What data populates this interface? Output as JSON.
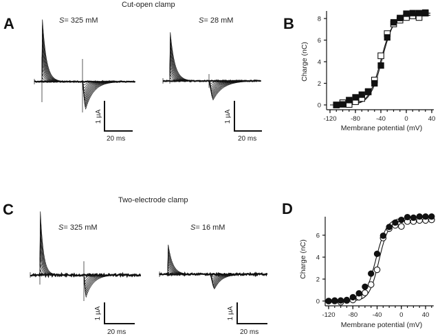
{
  "captions": {
    "top": "Cut-open clamp",
    "bottom": "Two-electrode clamp"
  },
  "panels": {
    "A": {
      "letter": "A"
    },
    "B": {
      "letter": "B"
    },
    "C": {
      "letter": "C"
    },
    "D": {
      "letter": "D"
    }
  },
  "traces": [
    {
      "id": "A1",
      "panel": "A",
      "s_symbol": "S",
      "label": "= 325 mM",
      "concentration_mM": 325,
      "scale_current": "1 µA",
      "scale_time": "20 ms"
    },
    {
      "id": "A2",
      "panel": "A",
      "s_symbol": "S",
      "label": "= 28 mM",
      "concentration_mM": 28,
      "scale_current": "1 µA",
      "scale_time": "20 ms"
    },
    {
      "id": "C1",
      "panel": "C",
      "s_symbol": "S",
      "label": "= 325 mM",
      "concentration_mM": 325,
      "scale_current": "1 µA",
      "scale_time": "20 ms"
    },
    {
      "id": "C2",
      "panel": "C",
      "s_symbol": "S",
      "label": "= 16 mM",
      "concentration_mM": 16,
      "scale_current": "1 µA",
      "scale_time": "20 ms"
    }
  ],
  "chart_data": [
    {
      "panel": "B",
      "type": "scatter",
      "title": "",
      "xlabel": "Membrane potential (mV)",
      "ylabel": "Charge (nC)",
      "xlim": [
        -125,
        40
      ],
      "ylim": [
        0,
        8.5
      ],
      "xticks": [
        -120,
        -80,
        -40,
        0,
        40
      ],
      "xticks_minor": [
        -120,
        -110,
        -100,
        -90,
        -80,
        -70,
        -60,
        -50,
        -40,
        -30,
        -20,
        -10,
        0,
        10,
        20,
        30,
        40
      ],
      "yticks": [
        0,
        2,
        4,
        6,
        8
      ],
      "xtick_labels": [
        "-120",
        "-80",
        "-40",
        "0",
        "40"
      ],
      "ytick_labels": [
        "0",
        "2",
        "4",
        "6",
        "8"
      ],
      "grid": false,
      "series": [
        {
          "name": "S = 325 mM",
          "marker": "filled-square",
          "x": [
            -110,
            -100,
            -90,
            -80,
            -70,
            -60,
            -50,
            -40,
            -30,
            -20,
            -10,
            0,
            10,
            20,
            30
          ],
          "y": [
            0.0,
            0.05,
            0.45,
            0.7,
            0.95,
            1.25,
            2.0,
            3.65,
            6.25,
            7.65,
            8.05,
            8.45,
            8.5,
            8.5,
            8.55
          ],
          "fit": {
            "qmax": 8.5,
            "v_half": -38,
            "k": 9.5
          }
        },
        {
          "name": "S = 28 mM",
          "marker": "open-square",
          "x": [
            -110,
            -100,
            -90,
            -80,
            -70,
            -60,
            -50,
            -40,
            -30,
            -20,
            -10,
            0,
            10,
            20,
            30
          ],
          "y": [
            0.0,
            0.2,
            0.05,
            0.3,
            0.6,
            1.2,
            2.3,
            4.55,
            6.6,
            7.5,
            7.85,
            8.1,
            8.25,
            8.1,
            8.5
          ],
          "fit": {
            "qmax": 8.3,
            "v_half": -40,
            "k": 9.5
          }
        }
      ]
    },
    {
      "panel": "D",
      "type": "scatter",
      "title": "",
      "xlabel": "Membrane potential (mV)",
      "ylabel": "Charge (nC)",
      "xlim": [
        -125,
        50
      ],
      "ylim": [
        0,
        7.5
      ],
      "xticks": [
        -120,
        -80,
        -40,
        0,
        40
      ],
      "xticks_minor": [
        -120,
        -110,
        -100,
        -90,
        -80,
        -70,
        -60,
        -50,
        -40,
        -30,
        -20,
        -10,
        0,
        10,
        20,
        30,
        40,
        50
      ],
      "yticks": [
        0,
        2,
        4,
        6
      ],
      "xtick_labels": [
        "-120",
        "-80",
        "-40",
        "0",
        "40"
      ],
      "ytick_labels": [
        "0",
        "2",
        "4",
        "6"
      ],
      "grid": false,
      "series": [
        {
          "name": "S = 325 mM",
          "marker": "filled-circle",
          "x": [
            -120,
            -110,
            -100,
            -90,
            -80,
            -70,
            -60,
            -50,
            -40,
            -30,
            -20,
            -10,
            0,
            10,
            20,
            30,
            40,
            50
          ],
          "y": [
            0.0,
            0.05,
            0.05,
            0.1,
            0.35,
            0.7,
            1.3,
            2.5,
            4.3,
            5.95,
            6.75,
            7.15,
            7.4,
            7.65,
            7.6,
            7.7,
            7.7,
            7.7
          ],
          "fit": {
            "qmax": 7.6,
            "v_half": -42,
            "k": 9
          }
        },
        {
          "name": "S = 16 mM",
          "marker": "open-circle",
          "x": [
            -120,
            -110,
            -100,
            -90,
            -80,
            -70,
            -60,
            -50,
            -40,
            -30,
            -20,
            -10,
            0,
            10,
            20,
            30,
            40,
            50
          ],
          "y": [
            0.0,
            0.0,
            -0.1,
            0.05,
            0.1,
            0.35,
            0.75,
            1.5,
            2.85,
            5.75,
            6.6,
            6.9,
            6.8,
            7.25,
            7.25,
            7.35,
            7.35,
            7.4
          ],
          "fit": {
            "qmax": 7.35,
            "v_half": -37,
            "k": 8
          }
        }
      ]
    }
  ]
}
